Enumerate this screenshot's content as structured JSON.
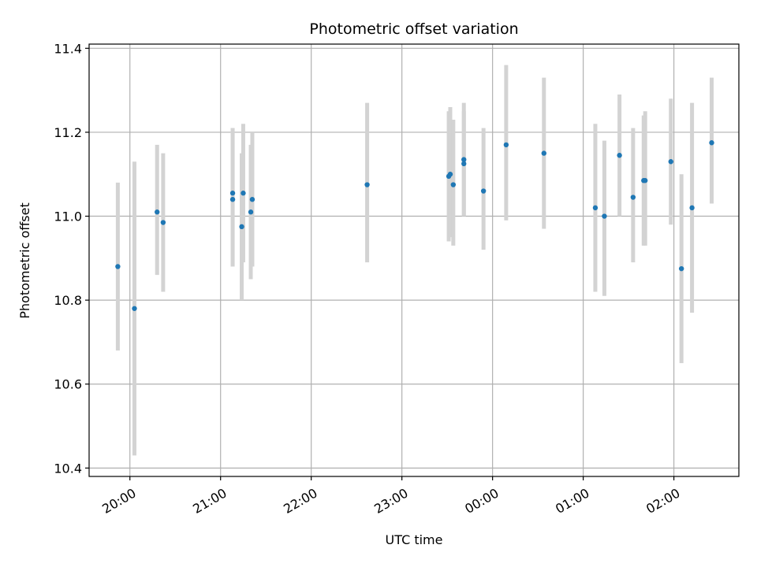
{
  "chart_data": {
    "type": "scatter",
    "title": "Photometric offset variation",
    "xlabel": "UTC time",
    "ylabel": "Photometric offset",
    "xlim": [
      "19:33",
      "02:43"
    ],
    "ylim": [
      10.38,
      11.41
    ],
    "x_ticks": [
      "20:00",
      "21:00",
      "22:00",
      "23:00",
      "00:00",
      "01:00",
      "02:00"
    ],
    "y_ticks": [
      "10.4",
      "10.6",
      "10.8",
      "11.0",
      "11.2",
      "11.4"
    ],
    "y_tick_values": [
      10.4,
      10.6,
      10.8,
      11.0,
      11.2,
      11.4
    ],
    "grid": true,
    "x_tick_rotation": 30,
    "colors": {
      "points": "#1f77b4",
      "errorbars": "#d3d3d3",
      "grid": "#b0b0b0"
    },
    "series": [
      {
        "points": [
          {
            "x": "19:52",
            "y": 10.88,
            "ylow": 10.68,
            "yhigh": 11.08
          },
          {
            "x": "20:03",
            "y": 10.78,
            "ylow": 10.43,
            "yhigh": 11.13
          },
          {
            "x": "20:18",
            "y": 11.01,
            "ylow": 10.86,
            "yhigh": 11.17
          },
          {
            "x": "20:22",
            "y": 10.985,
            "ylow": 10.82,
            "yhigh": 11.15
          },
          {
            "x": "21:08",
            "y": 11.055,
            "ylow": 10.88,
            "yhigh": 11.21
          },
          {
            "x": "21:08",
            "y": 11.04,
            "ylow": 10.88,
            "yhigh": 11.21
          },
          {
            "x": "21:14",
            "y": 10.975,
            "ylow": 10.8,
            "yhigh": 11.15
          },
          {
            "x": "21:15",
            "y": 11.055,
            "ylow": 10.89,
            "yhigh": 11.22
          },
          {
            "x": "21:20",
            "y": 11.01,
            "ylow": 10.85,
            "yhigh": 11.17
          },
          {
            "x": "21:21",
            "y": 11.04,
            "ylow": 10.88,
            "yhigh": 11.2
          },
          {
            "x": "22:37",
            "y": 11.075,
            "ylow": 10.89,
            "yhigh": 11.27
          },
          {
            "x": "23:31",
            "y": 11.095,
            "ylow": 10.94,
            "yhigh": 11.25
          },
          {
            "x": "23:32",
            "y": 11.1,
            "ylow": 10.95,
            "yhigh": 11.26
          },
          {
            "x": "23:34",
            "y": 11.075,
            "ylow": 10.93,
            "yhigh": 11.23
          },
          {
            "x": "23:41",
            "y": 11.135,
            "ylow": 11.0,
            "yhigh": 11.27
          },
          {
            "x": "23:41",
            "y": 11.125,
            "ylow": 11.0,
            "yhigh": 11.25
          },
          {
            "x": "23:54",
            "y": 11.06,
            "ylow": 10.92,
            "yhigh": 11.21
          },
          {
            "x": "00:09",
            "y": 11.17,
            "ylow": 10.99,
            "yhigh": 11.36
          },
          {
            "x": "00:34",
            "y": 11.15,
            "ylow": 10.97,
            "yhigh": 11.33
          },
          {
            "x": "01:08",
            "y": 11.02,
            "ylow": 10.82,
            "yhigh": 11.22
          },
          {
            "x": "01:14",
            "y": 11.0,
            "ylow": 10.81,
            "yhigh": 11.18
          },
          {
            "x": "01:24",
            "y": 11.145,
            "ylow": 11.0,
            "yhigh": 11.29
          },
          {
            "x": "01:33",
            "y": 11.045,
            "ylow": 10.89,
            "yhigh": 11.21
          },
          {
            "x": "01:40",
            "y": 11.085,
            "ylow": 10.93,
            "yhigh": 11.24
          },
          {
            "x": "01:41",
            "y": 11.085,
            "ylow": 10.93,
            "yhigh": 11.25
          },
          {
            "x": "01:58",
            "y": 11.13,
            "ylow": 10.98,
            "yhigh": 11.28
          },
          {
            "x": "02:05",
            "y": 10.875,
            "ylow": 10.65,
            "yhigh": 11.1
          },
          {
            "x": "02:12",
            "y": 11.02,
            "ylow": 10.77,
            "yhigh": 11.27
          },
          {
            "x": "02:25",
            "y": 11.175,
            "ylow": 11.03,
            "yhigh": 11.33
          }
        ]
      }
    ]
  }
}
